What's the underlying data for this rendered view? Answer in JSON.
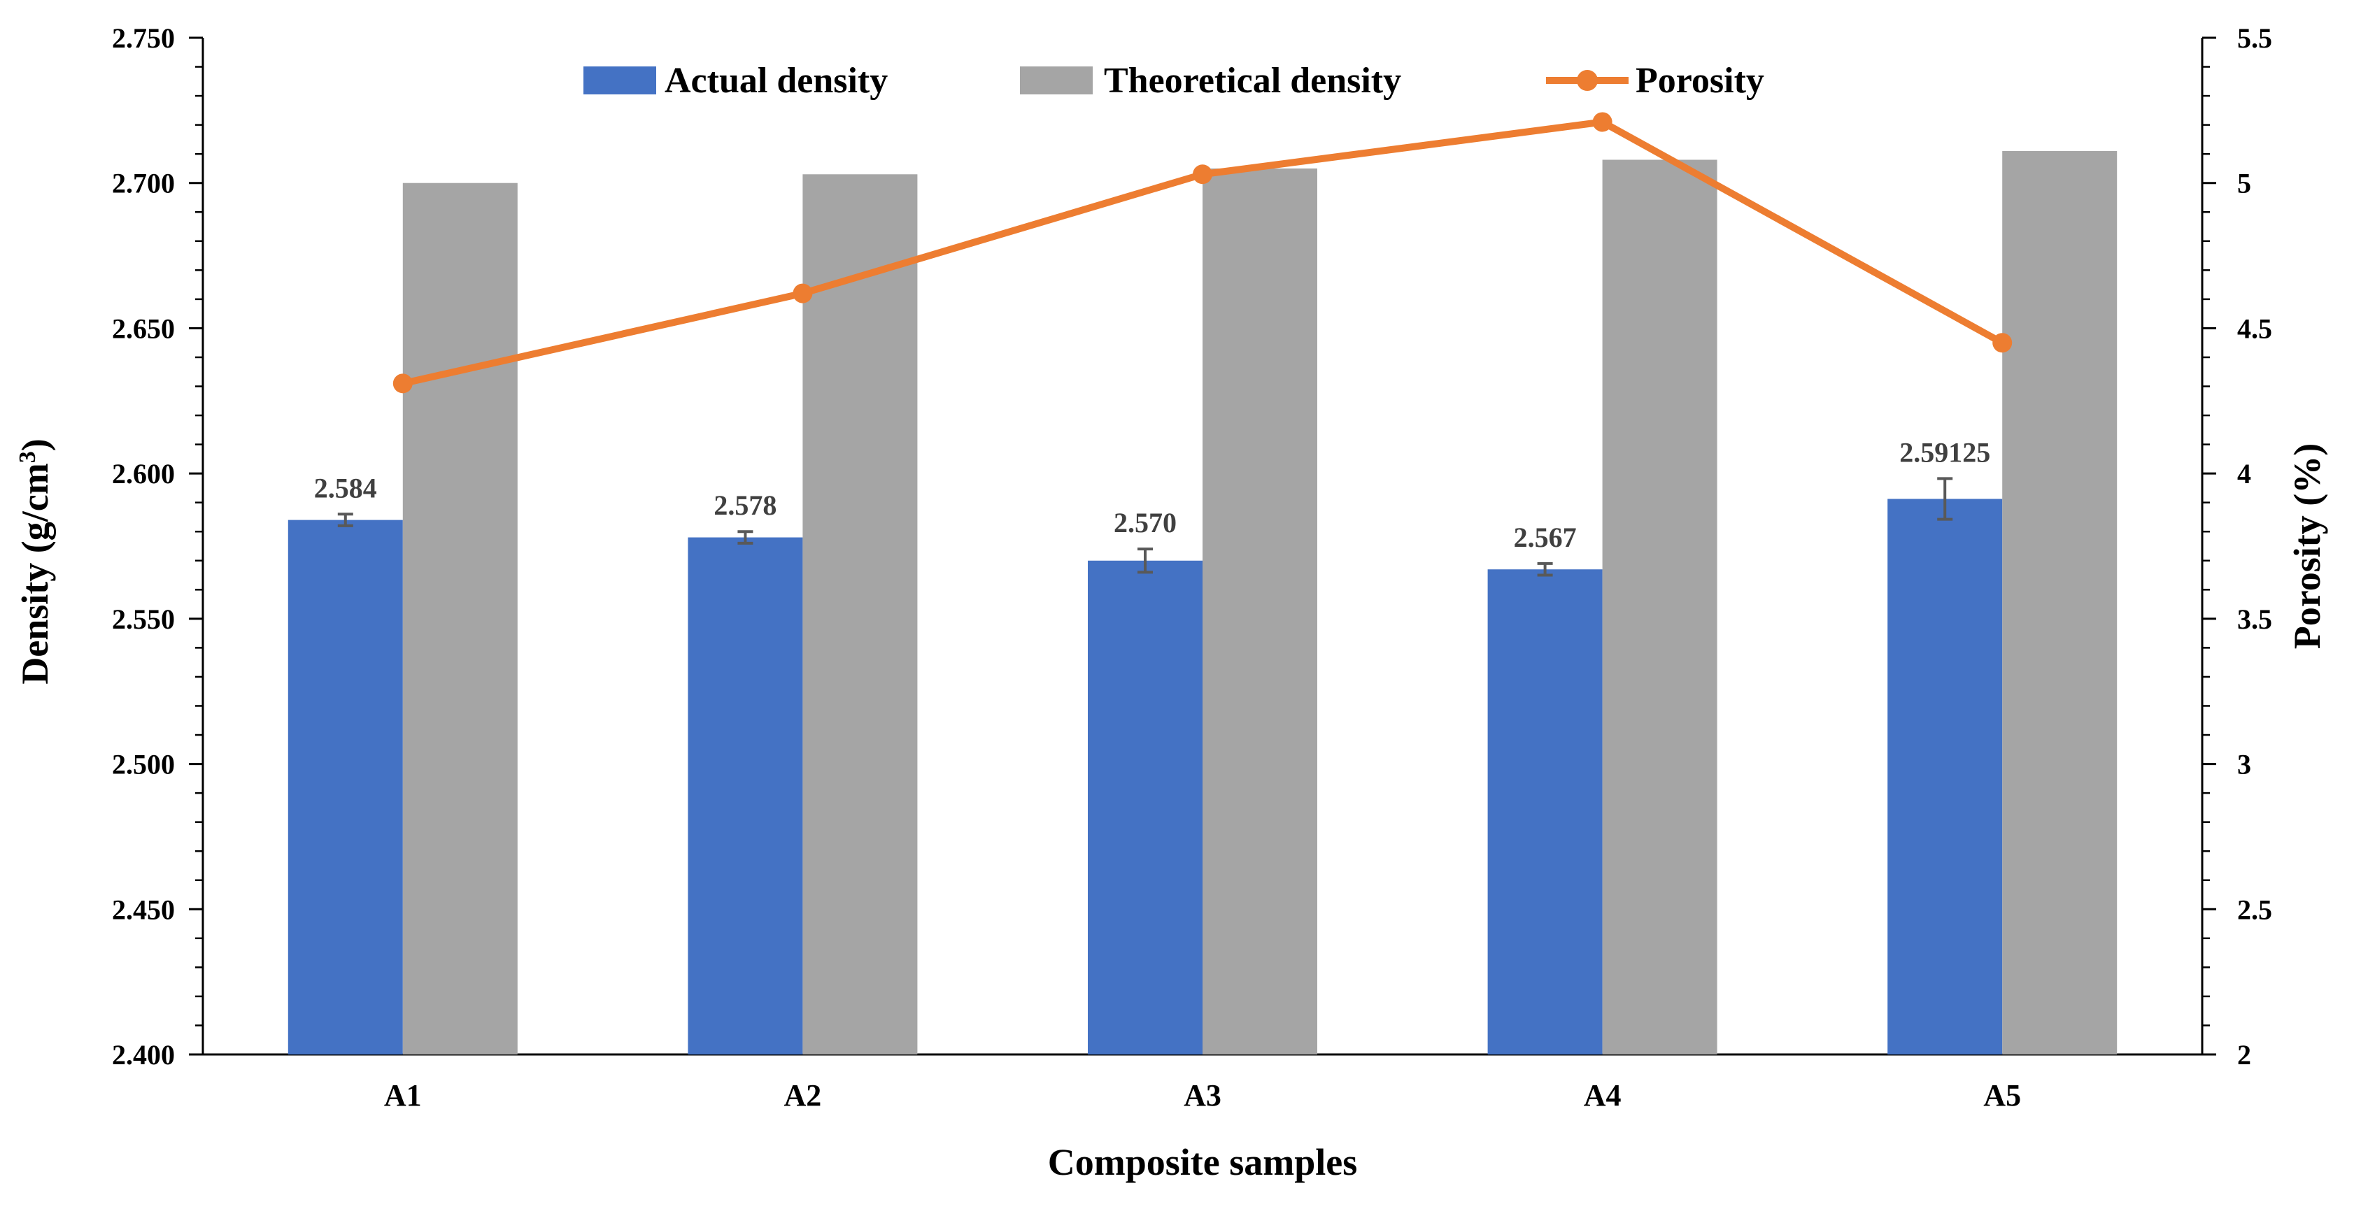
{
  "chart_data": {
    "type": "bar",
    "title": "",
    "xlabel": "Composite samples",
    "ylabel": "Density (g/cm³)",
    "ylabel_main": "Density (g/cm",
    "ylabel_sup": "3",
    "ylabel_close": ")",
    "y2label": "Porosity (%)",
    "categories": [
      "A1",
      "A2",
      "A3",
      "A4",
      "A5"
    ],
    "ylim": [
      2.4,
      2.75
    ],
    "yticks": [
      "2.400",
      "2.450",
      "2.500",
      "2.550",
      "2.600",
      "2.650",
      "2.700",
      "2.750"
    ],
    "y2lim": [
      2,
      5.5
    ],
    "y2ticks": [
      "2",
      "2.5",
      "3",
      "3.5",
      "4",
      "4.5",
      "5",
      "5.5"
    ],
    "series": [
      {
        "name": "Actual density",
        "kind": "bar",
        "axis": "left",
        "color": "#4472C4",
        "values": [
          2.584,
          2.578,
          2.57,
          2.567,
          2.59125
        ],
        "errors": [
          0.002,
          0.002,
          0.004,
          0.002,
          0.007
        ],
        "labels": [
          "2.584",
          "2.578",
          "2.570",
          "2.567",
          "2.59125"
        ]
      },
      {
        "name": "Theoretical density",
        "kind": "bar",
        "axis": "left",
        "color": "#A5A5A5",
        "values": [
          2.7,
          2.703,
          2.705,
          2.708,
          2.711
        ]
      },
      {
        "name": "Porosity",
        "kind": "line",
        "axis": "right",
        "color": "#ED7D31",
        "values": [
          4.31,
          4.62,
          5.03,
          5.21,
          4.45
        ]
      }
    ],
    "legend_position": "top-center",
    "grid": false
  }
}
